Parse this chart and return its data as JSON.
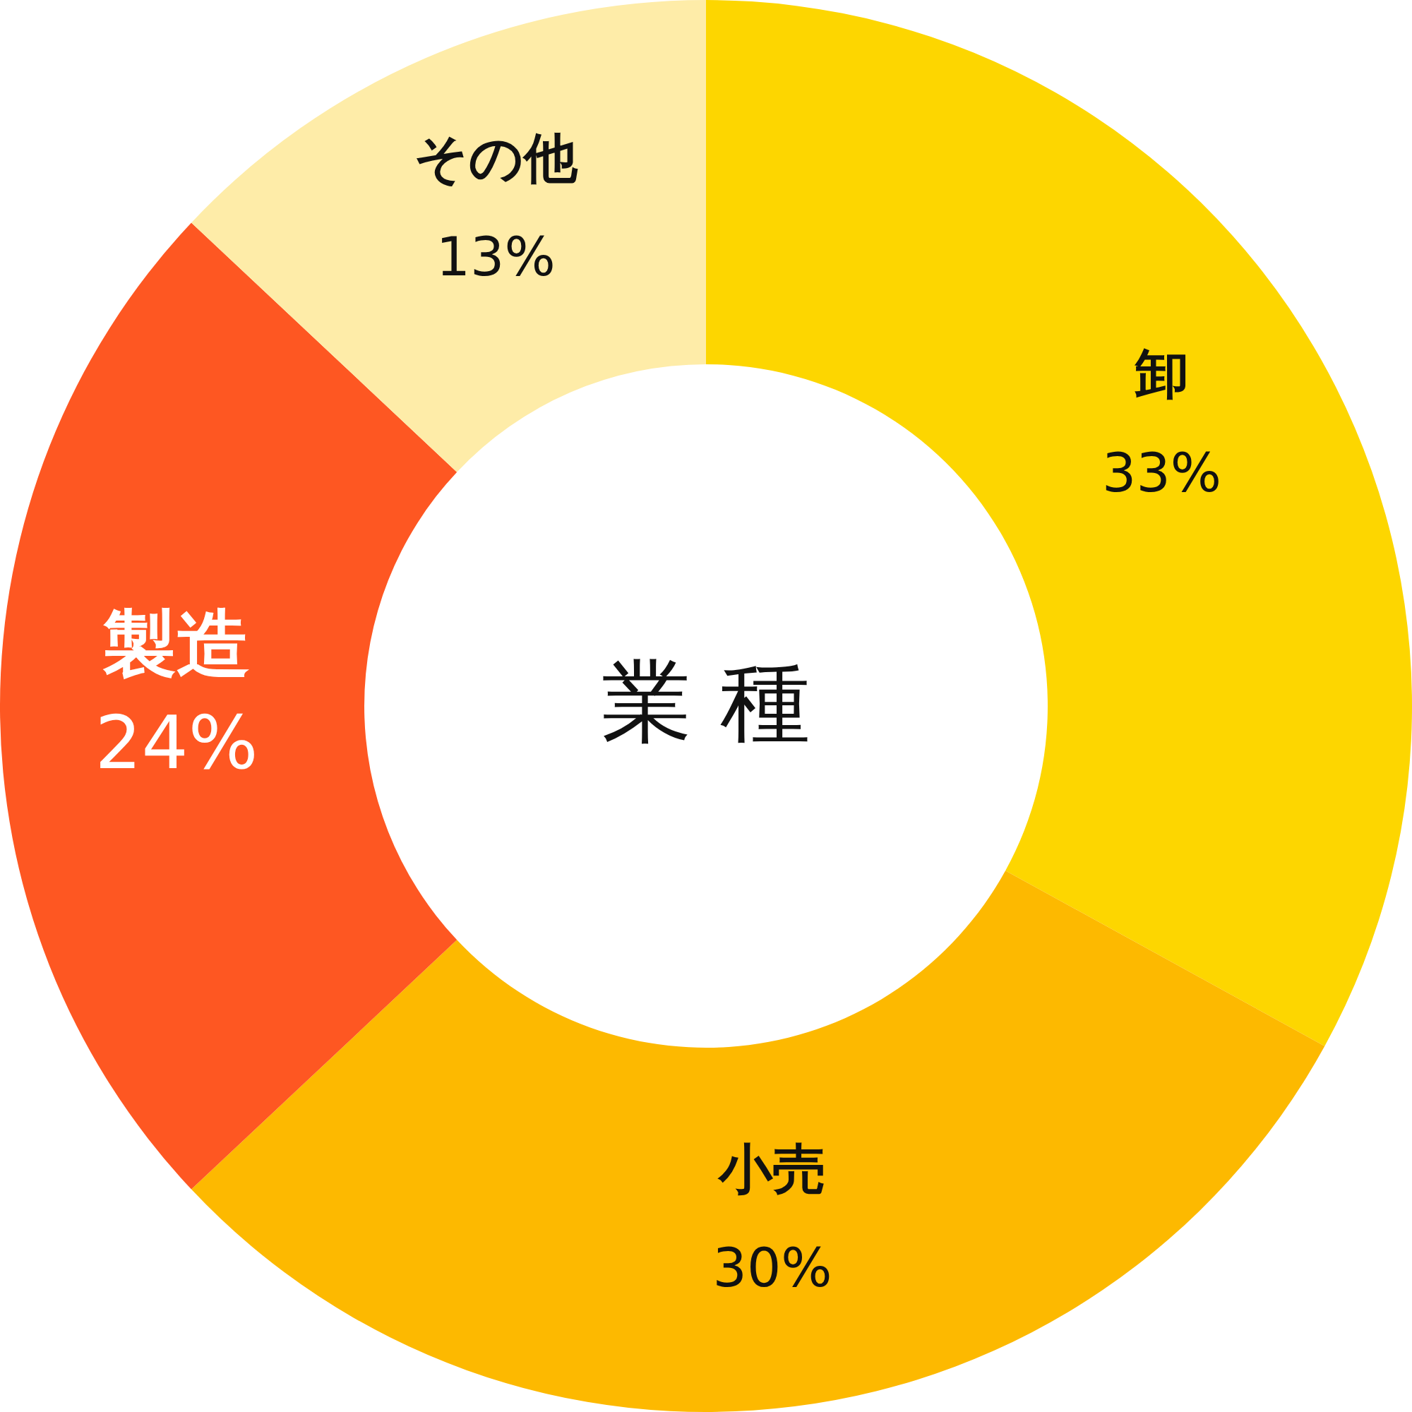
{
  "chart_data": {
    "type": "donut",
    "title": "業 種",
    "categories": [
      "卸",
      "小売",
      "製造",
      "その他"
    ],
    "values": [
      33,
      30,
      24,
      13
    ],
    "value_labels": [
      "33%",
      "30%",
      "24%",
      "13%"
    ],
    "colors": [
      "#fdd600",
      "#fdb900",
      "#fe5722",
      "#feeca8"
    ]
  }
}
